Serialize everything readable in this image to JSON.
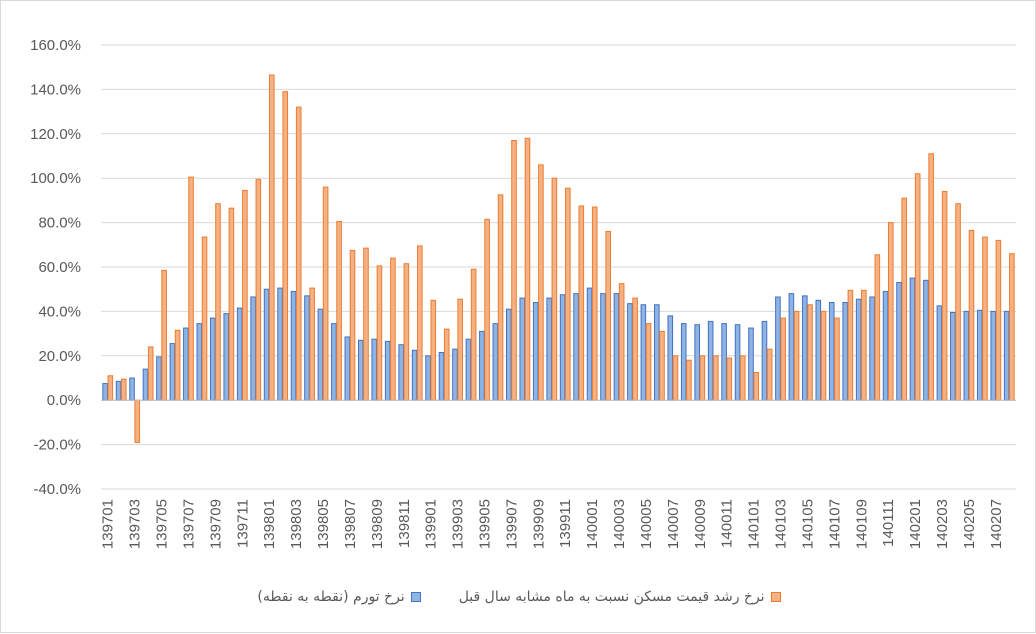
{
  "chart_data": {
    "type": "bar",
    "ylim": [
      -40,
      160
    ],
    "y_ticks": [
      "160.0%",
      "140.0%",
      "120.0%",
      "100.0%",
      "80.0%",
      "60.0%",
      "40.0%",
      "20.0%",
      "0.0%",
      "-20.0%",
      "-40.0%"
    ],
    "y_tick_values": [
      160,
      140,
      120,
      100,
      80,
      60,
      40,
      20,
      0,
      -20,
      -40
    ],
    "grid": true,
    "legend_position": "bottom",
    "categories": [
      "139701",
      "139702",
      "139703",
      "139704",
      "139705",
      "139706",
      "139707",
      "139708",
      "139709",
      "139710",
      "139711",
      "139712",
      "139801",
      "139802",
      "139803",
      "139804",
      "139805",
      "139806",
      "139807",
      "139808",
      "139809",
      "139810",
      "139811",
      "139812",
      "139901",
      "139902",
      "139903",
      "139904",
      "139905",
      "139906",
      "139907",
      "139908",
      "139909",
      "139910",
      "139911",
      "139912",
      "140001",
      "140002",
      "140003",
      "140004",
      "140005",
      "140006",
      "140007",
      "140008",
      "140009",
      "140010",
      "140011",
      "140012",
      "140101",
      "140102",
      "140103",
      "140104",
      "140105",
      "140106",
      "140107",
      "140108",
      "140109",
      "140110",
      "140111",
      "140112",
      "140201",
      "140202",
      "140203",
      "140204",
      "140205",
      "140206",
      "140207",
      "140208"
    ],
    "x_tick_labels": [
      "139701",
      "139703",
      "139705",
      "139707",
      "139709",
      "139711",
      "139801",
      "139803",
      "139805",
      "139807",
      "139809",
      "139811",
      "139901",
      "139903",
      "139905",
      "139907",
      "139909",
      "139911",
      "140001",
      "140003",
      "140005",
      "140007",
      "140009",
      "140011",
      "140101",
      "140103",
      "140105",
      "140107",
      "140109",
      "140111",
      "140201",
      "140203",
      "140205",
      "140207"
    ],
    "series": [
      {
        "name": "نرخ تورم (نقطه به نقطه)",
        "color": "#4472c4",
        "values": [
          7.5,
          8.5,
          10,
          14,
          19.5,
          25.5,
          32.5,
          34.5,
          37,
          39,
          41.5,
          46.5,
          50,
          50.5,
          49,
          47,
          41,
          34.5,
          28.5,
          27,
          27.5,
          26.5,
          25,
          22.5,
          20,
          21.5,
          23,
          27.5,
          31,
          34.5,
          41,
          46,
          44,
          46,
          47.5,
          48,
          50.5,
          48,
          48,
          43.5,
          43,
          43,
          38,
          34.5,
          34,
          35.5,
          34.5,
          34,
          32.5,
          35.5,
          46.5,
          48,
          47,
          45,
          44,
          44,
          45.5,
          46.5,
          49,
          53,
          55,
          54,
          42.5,
          39.5,
          40,
          40.5,
          40,
          40
        ]
      },
      {
        "name": "نرخ رشد قیمت مسکن نسبت به ماه مشابه سال قبل",
        "color": "#ed7d31",
        "values": [
          11,
          9.5,
          -19,
          24,
          58.5,
          31.5,
          100.5,
          73.5,
          88.5,
          86.5,
          94.5,
          99.5,
          146.5,
          139,
          132,
          50.5,
          96,
          80.5,
          67.5,
          68.5,
          60.5,
          64,
          61.5,
          69.5,
          45,
          32,
          45.5,
          59,
          81.5,
          92.5,
          117,
          118,
          106,
          100,
          95.5,
          87.5,
          87,
          76,
          52.5,
          46,
          34.5,
          31,
          20,
          18,
          20,
          20,
          19,
          20,
          12.5,
          23,
          37,
          40,
          43,
          40,
          37,
          49.5,
          49.5,
          65.5,
          80,
          91,
          102,
          111,
          94,
          88.5,
          76.5,
          73.5,
          72,
          66
        ]
      }
    ]
  }
}
